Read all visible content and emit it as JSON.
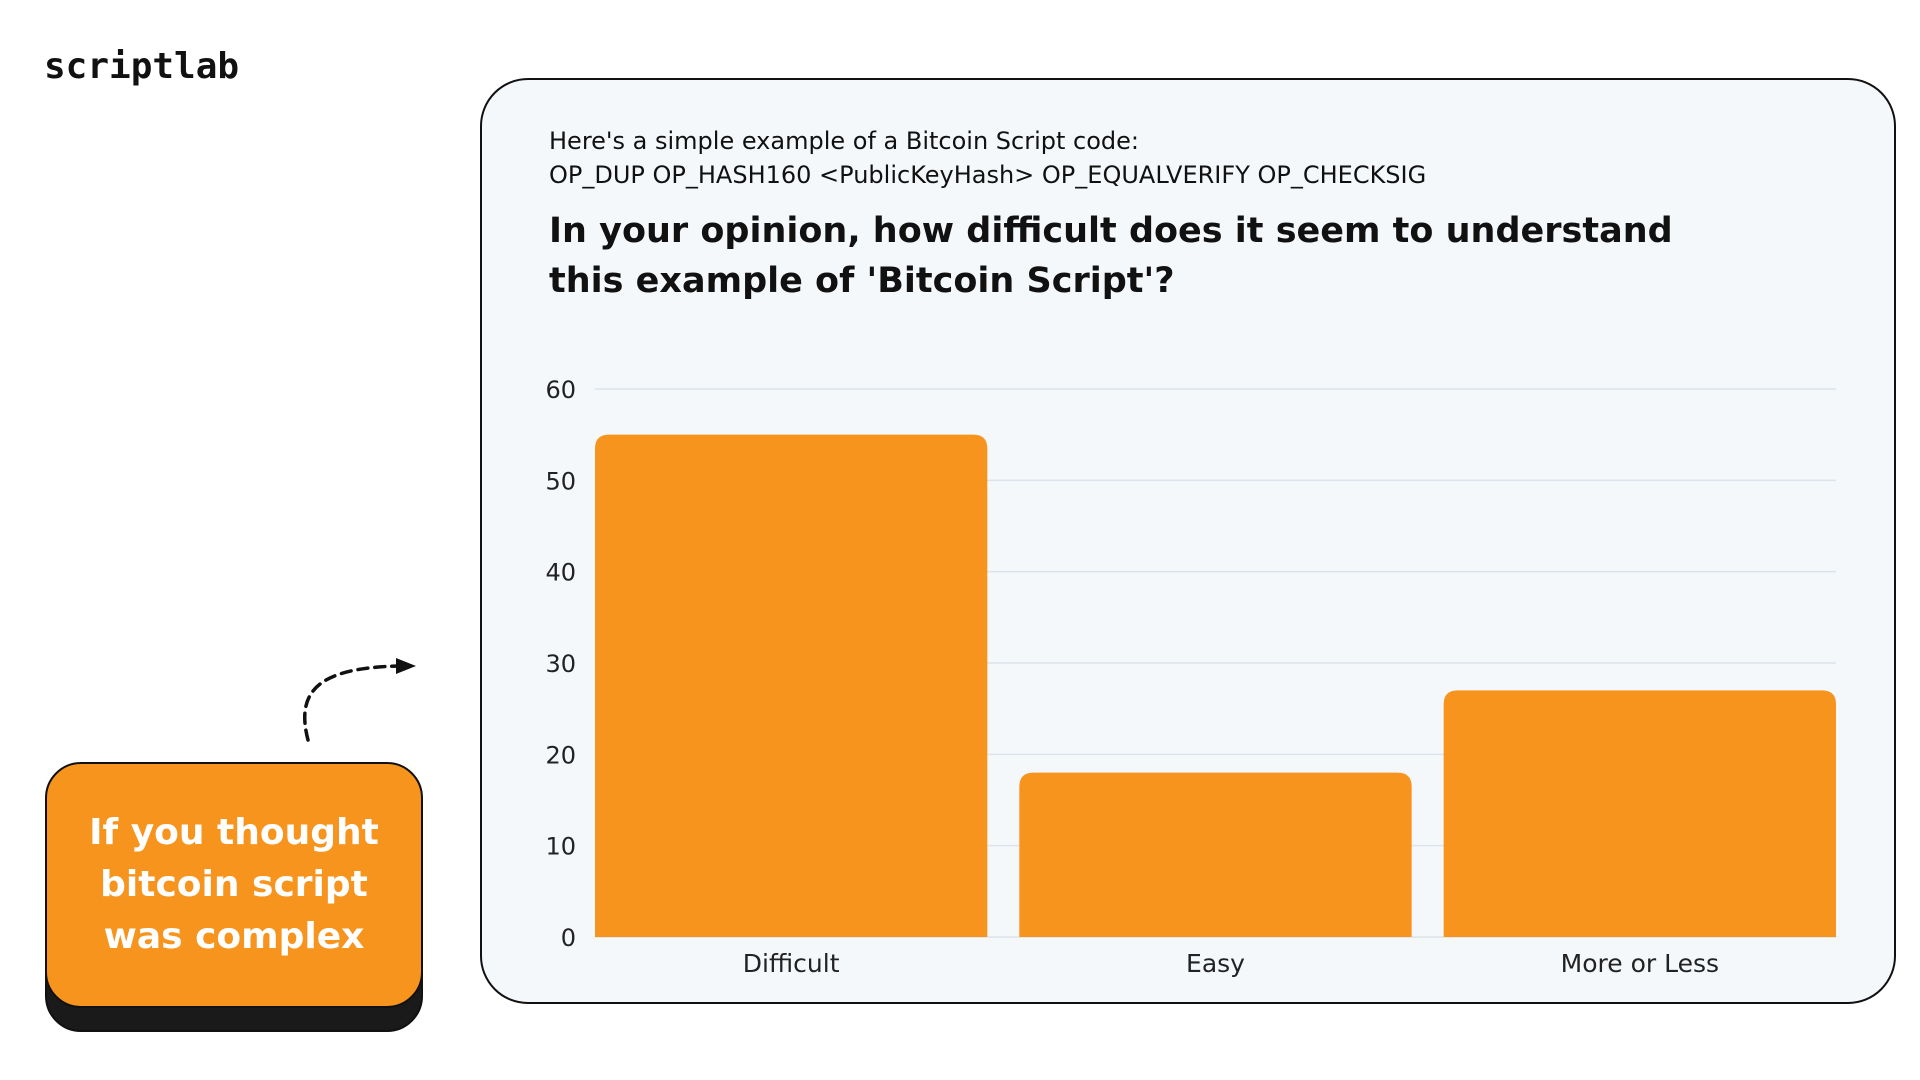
{
  "brand": {
    "logo_text": "scriptlab",
    "accent_color": "#f7941d"
  },
  "intro": {
    "line1": "Here's a simple example of a Bitcoin Script code:",
    "line2": "OP_DUP OP_HASH160 <PublicKeyHash> OP_EQUALVERIFY OP_CHECKSIG"
  },
  "question": {
    "line1": "In your opinion, how difficult does it seem to understand",
    "line2": "this example of 'Bitcoin Script'?"
  },
  "callout": {
    "line1": "If you thought",
    "line2": "bitcoin script",
    "line3": "was complex"
  },
  "chart_data": {
    "type": "bar",
    "categories": [
      "Difficult",
      "Easy",
      "More or Less"
    ],
    "values": [
      55,
      18,
      27
    ],
    "ylim": [
      0,
      60
    ],
    "yticks": [
      0,
      10,
      20,
      30,
      40,
      50,
      60
    ],
    "grid": true,
    "bar_color": "#f7941d",
    "title": "",
    "xlabel": "",
    "ylabel": ""
  }
}
